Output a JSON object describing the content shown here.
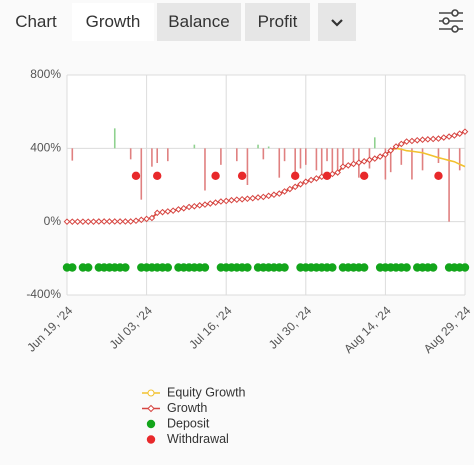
{
  "tabs": [
    "Chart",
    "Growth",
    "Balance",
    "Profit"
  ],
  "chart_data": {
    "type": "line",
    "categories": [
      "Jun 19, '24",
      null,
      null,
      null,
      null,
      null,
      null,
      null,
      null,
      null,
      null,
      null,
      null,
      null,
      null,
      "Jul 03, '24",
      null,
      null,
      null,
      null,
      null,
      null,
      null,
      null,
      null,
      null,
      null,
      null,
      null,
      null,
      "Jul 16, '24",
      null,
      null,
      null,
      null,
      null,
      null,
      null,
      null,
      null,
      null,
      null,
      null,
      null,
      null,
      "Jul 30, '24",
      null,
      null,
      null,
      null,
      null,
      null,
      null,
      null,
      null,
      null,
      null,
      null,
      null,
      null,
      "Aug 14, '24",
      null,
      null,
      null,
      null,
      null,
      null,
      null,
      null,
      null,
      null,
      null,
      null,
      null,
      null,
      "Aug 29, '24"
    ],
    "ylim": [
      -400,
      800
    ],
    "yticks": [
      {
        "value": -400,
        "label": "-400%"
      },
      {
        "value": 0,
        "label": "0%"
      },
      {
        "value": 400,
        "label": "400%"
      },
      {
        "value": 800,
        "label": "800%"
      }
    ],
    "grid": true,
    "series": [
      {
        "name": "Equity Growth",
        "color": "#f2c12e",
        "type": "line",
        "values": [
          0,
          0,
          0,
          0,
          0,
          0,
          1,
          1,
          1,
          1,
          1,
          1,
          1,
          5,
          10,
          15,
          20,
          48,
          52,
          56,
          60,
          67,
          73,
          80,
          84,
          89,
          93,
          99,
          104,
          110,
          113,
          117,
          120,
          122,
          125,
          128,
          132,
          135,
          141,
          147,
          153,
          165,
          178,
          190,
          204,
          218,
          227,
          236,
          245,
          253,
          260,
          268,
          300,
          307,
          315,
          322,
          329,
          337,
          344,
          355,
          366,
          388,
          400,
          395,
          387,
          384,
          380,
          376,
          367,
          358,
          349,
          342,
          334,
          327,
          313,
          300
        ]
      },
      {
        "name": "Growth",
        "color": "#d64541",
        "type": "line",
        "marker": "diamond",
        "values": [
          0,
          0,
          0,
          0,
          0,
          0,
          1,
          1,
          1,
          1,
          1,
          1,
          1,
          5,
          10,
          15,
          20,
          48,
          52,
          56,
          60,
          67,
          73,
          80,
          84,
          89,
          93,
          99,
          104,
          110,
          113,
          117,
          120,
          122,
          125,
          128,
          132,
          135,
          141,
          147,
          153,
          165,
          178,
          190,
          204,
          218,
          227,
          236,
          245,
          253,
          260,
          268,
          300,
          307,
          315,
          322,
          329,
          337,
          344,
          355,
          366,
          388,
          410,
          424,
          437,
          440,
          444,
          447,
          449,
          451,
          453,
          459,
          464,
          470,
          480,
          491
        ]
      },
      {
        "name": "Deposit",
        "color": "#13a51b",
        "type": "scatter",
        "values": [
          -250,
          -250,
          null,
          -250,
          -250,
          null,
          -250,
          -250,
          -250,
          -250,
          -250,
          -250,
          null,
          null,
          -250,
          -250,
          -250,
          -250,
          -250,
          -250,
          null,
          -250,
          -250,
          -250,
          -250,
          -250,
          -250,
          null,
          null,
          -250,
          -250,
          -250,
          -250,
          -250,
          -250,
          null,
          -250,
          -250,
          -250,
          -250,
          -250,
          -250,
          null,
          null,
          -250,
          -250,
          -250,
          -250,
          -250,
          -250,
          -250,
          null,
          -250,
          -250,
          -250,
          -250,
          -250,
          null,
          null,
          -250,
          -250,
          -250,
          -250,
          -250,
          -250,
          null,
          -250,
          -250,
          -250,
          -250,
          null,
          null,
          -250,
          -250,
          -250,
          -250
        ]
      },
      {
        "name": "Withdrawal",
        "color": "#e8292b",
        "type": "scatter",
        "values": [
          null,
          null,
          null,
          null,
          null,
          null,
          null,
          null,
          null,
          null,
          null,
          null,
          null,
          250,
          null,
          null,
          null,
          250,
          null,
          null,
          null,
          null,
          null,
          null,
          null,
          null,
          null,
          null,
          250,
          null,
          null,
          null,
          null,
          250,
          null,
          null,
          null,
          null,
          null,
          null,
          null,
          null,
          null,
          250,
          null,
          null,
          null,
          null,
          null,
          250,
          null,
          null,
          null,
          null,
          null,
          null,
          250,
          null,
          null,
          null,
          null,
          null,
          null,
          null,
          null,
          null,
          null,
          null,
          null,
          null,
          250,
          null,
          null,
          null,
          null,
          null
        ]
      },
      {
        "type": "bar",
        "base": 400,
        "color": "#e08080",
        "up_color": "#8fd18f",
        "values": [
          null,
          333,
          null,
          null,
          null,
          null,
          null,
          null,
          null,
          509,
          null,
          null,
          340,
          null,
          120,
          null,
          300,
          320,
          null,
          330,
          null,
          null,
          null,
          null,
          420,
          null,
          170,
          null,
          null,
          310,
          null,
          null,
          330,
          null,
          200,
          null,
          420,
          340,
          410,
          null,
          240,
          330,
          null,
          260,
          290,
          310,
          null,
          280,
          230,
          330,
          260,
          280,
          300,
          null,
          320,
          240,
          null,
          290,
          460,
          null,
          230,
          270,
          null,
          310,
          null,
          230,
          null,
          280,
          null,
          null,
          320,
          null,
          0,
          null,
          280,
          null
        ]
      }
    ]
  }
}
